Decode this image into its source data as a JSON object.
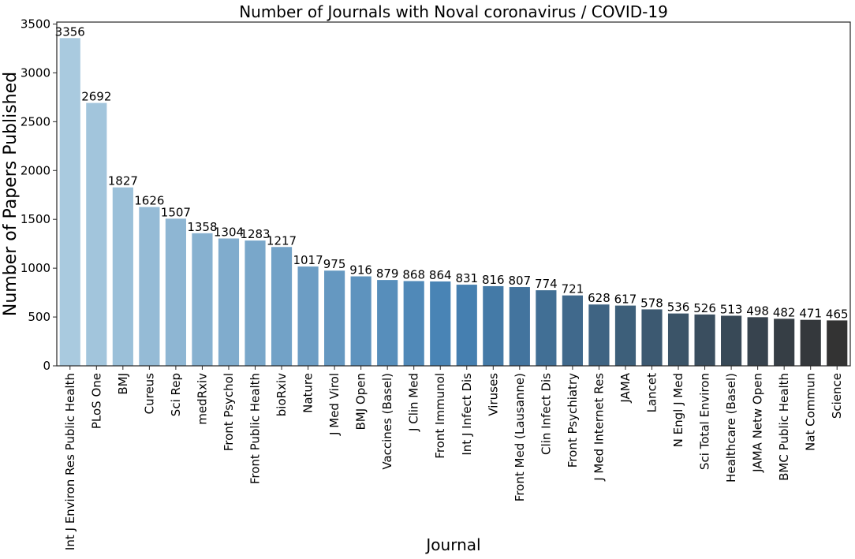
{
  "chart_data": {
    "type": "bar",
    "title": "Number of Journals with Noval coronavirus / COVID-19",
    "xlabel": "Journal",
    "ylabel": "Number of Papers Published",
    "ylim": [
      0,
      3520
    ],
    "yticks": [
      0,
      500,
      1000,
      1500,
      2000,
      2500,
      3000,
      3500
    ],
    "grid": false,
    "legend": "none",
    "palette": "Blues_d (light steel-blue to near-black)",
    "color_start": "#a9cadf",
    "color_mid": "#4682b4",
    "color_end": "#333333",
    "categories": [
      "Int J Environ Res Public Health",
      "PLoS One",
      "BMJ",
      "Cureus",
      "Sci Rep",
      "medRxiv",
      "Front Psychol",
      "Front Public Health",
      "bioRxiv",
      "Nature",
      "J Med Virol",
      "BMJ Open",
      "Vaccines (Basel)",
      "J Clin Med",
      "Front Immunol",
      "Int J Infect Dis",
      "Viruses",
      "Front Med (Lausanne)",
      "Clin Infect Dis",
      "Front Psychiatry",
      "J Med Internet Res",
      "JAMA",
      "Lancet",
      "N Engl J Med",
      "Sci Total Environ",
      "Healthcare (Basel)",
      "JAMA Netw Open",
      "BMC Public Health",
      "Nat Commun",
      "Science"
    ],
    "values": [
      3356,
      2692,
      1827,
      1626,
      1507,
      1358,
      1304,
      1283,
      1217,
      1017,
      975,
      916,
      879,
      868,
      864,
      831,
      816,
      807,
      774,
      721,
      628,
      617,
      578,
      536,
      526,
      513,
      498,
      482,
      471,
      465
    ]
  }
}
